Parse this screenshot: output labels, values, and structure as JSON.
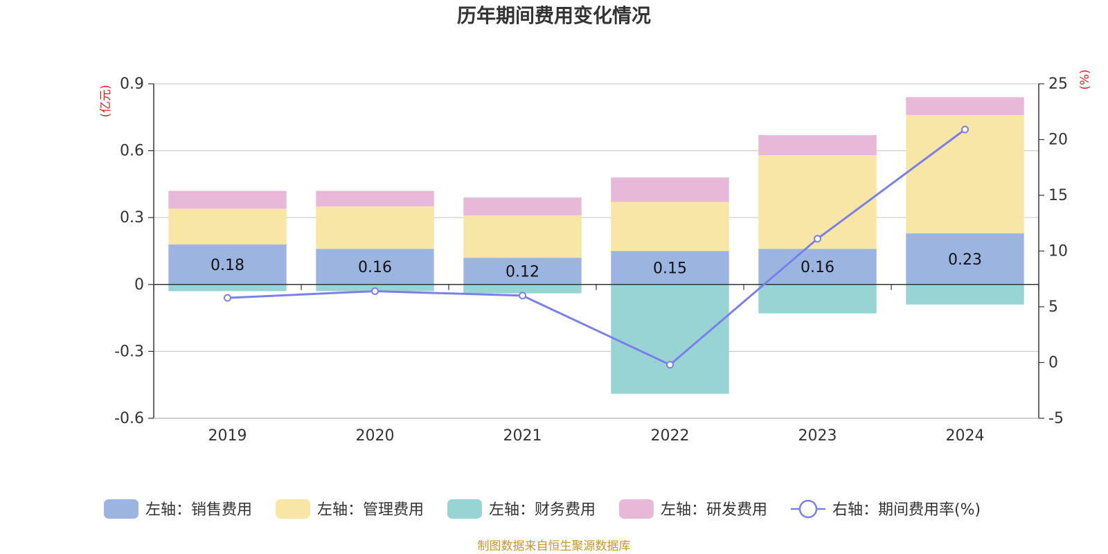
{
  "chart_data": {
    "type": "bar",
    "title": "历年期间费用变化情况",
    "left_axis_unit": "(亿元)",
    "right_axis_unit": "(%)",
    "categories": [
      "2019",
      "2020",
      "2021",
      "2022",
      "2023",
      "2024"
    ],
    "left_ylim": [
      -0.6,
      0.9
    ],
    "left_yticks": [
      "0.9",
      "0.6",
      "0.3",
      "0",
      "-0.3",
      "-0.6"
    ],
    "right_ylim": [
      -5,
      25
    ],
    "right_yticks": [
      "25",
      "20",
      "15",
      "10",
      "5",
      "0",
      "-5"
    ],
    "grid": true,
    "legend_position": "bottom",
    "series": [
      {
        "name": "左轴：销售费用",
        "axis": "left",
        "type": "bar",
        "color": "#9bb5e0",
        "values": [
          0.18,
          0.16,
          0.12,
          0.15,
          0.16,
          0.23
        ],
        "labels": [
          "0.18",
          "0.16",
          "0.12",
          "0.15",
          "0.16",
          "0.23"
        ]
      },
      {
        "name": "左轴：管理费用",
        "axis": "left",
        "type": "bar",
        "color": "#f7e6a6",
        "values": [
          0.16,
          0.19,
          0.19,
          0.22,
          0.42,
          0.53
        ]
      },
      {
        "name": "左轴：财务费用",
        "axis": "left",
        "type": "bar",
        "color": "#98d4d4",
        "values": [
          -0.03,
          -0.03,
          -0.04,
          -0.49,
          -0.13,
          -0.09
        ]
      },
      {
        "name": "左轴：研发费用",
        "axis": "left",
        "type": "bar",
        "color": "#e8b8d8",
        "values": [
          0.08,
          0.07,
          0.08,
          0.11,
          0.09,
          0.08
        ]
      },
      {
        "name": "右轴：期间费用率(%)",
        "axis": "right",
        "type": "line",
        "color": "#7b7fea",
        "values": [
          5.8,
          6.4,
          6.0,
          -0.2,
          11.1,
          20.9
        ]
      }
    ],
    "source": "制图数据来自恒生聚源数据库"
  }
}
